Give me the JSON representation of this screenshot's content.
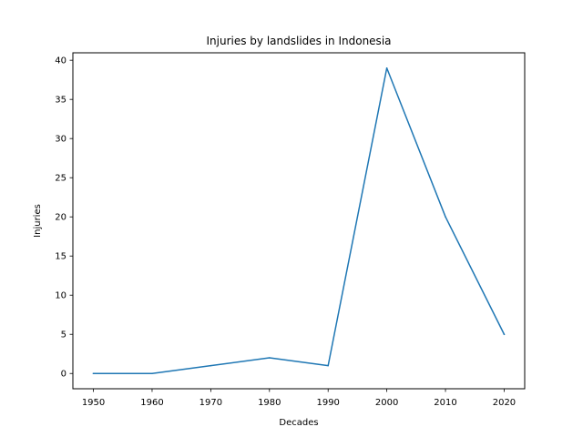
{
  "chart_data": {
    "type": "line",
    "title": "Injuries by landslides in Indonesia",
    "xlabel": "Decades",
    "ylabel": "Injuries",
    "x": [
      1950,
      1960,
      1970,
      1980,
      1990,
      2000,
      2010,
      2020
    ],
    "series": [
      {
        "values": [
          0,
          0,
          1,
          2,
          1,
          39,
          20,
          5
        ]
      }
    ],
    "xticks": [
      1950,
      1960,
      1970,
      1980,
      1990,
      2000,
      2010,
      2020
    ],
    "yticks": [
      0,
      5,
      10,
      15,
      20,
      25,
      30,
      35,
      40
    ],
    "xlim": [
      1946.5,
      2023.5
    ],
    "ylim": [
      -1.95,
      40.95
    ],
    "grid": false,
    "line_color": "#1f77b4"
  }
}
